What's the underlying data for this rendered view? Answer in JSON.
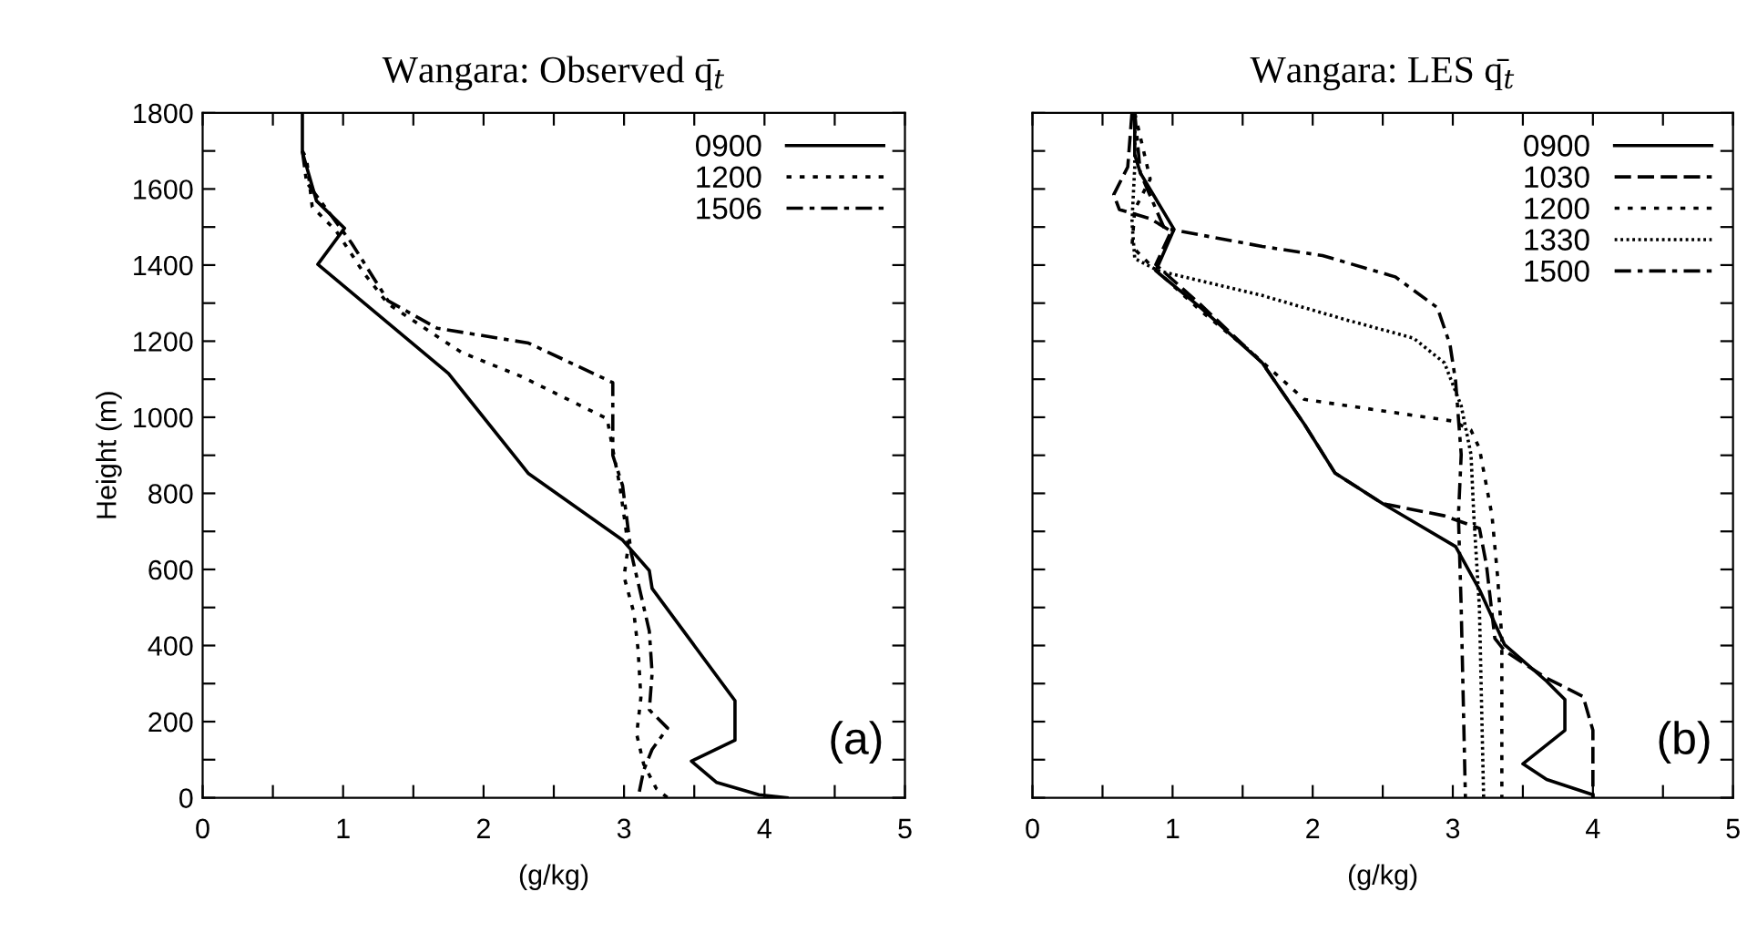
{
  "chart_data": [
    {
      "type": "line",
      "title": "Wangara: Observed q̄$_{t}$",
      "xlabel": "(g/kg)",
      "ylabel": "Height (m)",
      "annotations": [
        "(a)"
      ],
      "xlim": [
        0,
        5
      ],
      "ylim": [
        0,
        1800
      ],
      "xticks": [
        0,
        {
          "value": 0.5,
          "label": null
        },
        1,
        {
          "value": 1.5,
          "label": null
        },
        2,
        {
          "value": 2.5,
          "label": null
        },
        3,
        {
          "value": 3.5,
          "label": null
        },
        4,
        {
          "value": 4.5,
          "label": null
        },
        5
      ],
      "yticks": [
        0,
        {
          "value": 100,
          "label": null
        },
        200,
        {
          "value": 300,
          "label": null
        },
        400,
        {
          "value": 500,
          "label": null
        },
        600,
        {
          "value": 700,
          "label": null
        },
        800,
        {
          "value": 900,
          "label": null
        },
        1000,
        {
          "value": 1100,
          "label": null
        },
        1200,
        {
          "value": 1300,
          "label": null
        },
        1400,
        {
          "value": 1500,
          "label": null
        },
        1600,
        {
          "value": 1700,
          "label": null
        },
        1800
      ],
      "grid": false,
      "legend": "top right",
      "series": [
        {
          "name": "0900",
          "color": "#000000",
          "line_style": "solid",
          "x": [
            0.71,
            0.71,
            0.81,
            1.01,
            0.82,
            1.75,
            2.32,
            2.99,
            3.18,
            3.2,
            3.79,
            3.79,
            3.48,
            3.66,
            3.96,
            4.16
          ],
          "values": [
            1800,
            1697,
            1569,
            1497,
            1402,
            1115,
            852,
            677,
            597,
            550,
            255,
            151,
            96,
            40,
            8,
            0
          ]
        },
        {
          "name": "1200",
          "color": "#000000",
          "line_style": "dotted",
          "x": [
            0.71,
            0.74,
            0.78,
            0.95,
            1.15,
            1.32,
            1.84,
            2.27,
            2.88,
            2.92,
            2.97,
            3.0,
            3.03,
            3.0,
            3.07,
            3.1,
            3.12,
            3.09,
            3.14,
            3.23,
            3.31
          ],
          "values": [
            1700,
            1680,
            1553,
            1490,
            1378,
            1298,
            1171,
            1107,
            996,
            916,
            820,
            741,
            661,
            581,
            486,
            390,
            263,
            167,
            88,
            24,
            0
          ]
        },
        {
          "name": "1506",
          "color": "#000000",
          "line_style": "dashdot",
          "x": [
            0.71,
            0.74,
            0.87,
            1.06,
            1.32,
            1.67,
            2.32,
            2.92,
            2.92,
            2.99,
            3.05,
            3.12,
            3.18,
            3.2,
            3.18,
            3.31,
            3.2,
            3.14,
            3.1
          ],
          "values": [
            1700,
            1617,
            1553,
            1458,
            1306,
            1234,
            1195,
            1091,
            900,
            820,
            645,
            534,
            438,
            327,
            231,
            183,
            127,
            72,
            0
          ]
        }
      ]
    },
    {
      "type": "line",
      "title": "Wangara: LES q̄$_{t}$",
      "xlabel": "(g/kg)",
      "annotations": [
        "(b)"
      ],
      "tick_labels": "x",
      "xlim": [
        0,
        5
      ],
      "ylim": [
        0,
        1800
      ],
      "xticks": [
        0,
        {
          "value": 0.5,
          "label": null
        },
        1,
        {
          "value": 1.5,
          "label": null
        },
        2,
        {
          "value": 2.5,
          "label": null
        },
        3,
        {
          "value": 3.5,
          "label": null
        },
        4,
        {
          "value": 4.5,
          "label": null
        },
        5
      ],
      "yticks": [
        0,
        {
          "value": 100,
          "label": null
        },
        200,
        {
          "value": 300,
          "label": null
        },
        400,
        {
          "value": 500,
          "label": null
        },
        600,
        {
          "value": 700,
          "label": null
        },
        800,
        {
          "value": 900,
          "label": null
        },
        1000,
        {
          "value": 1100,
          "label": null
        },
        1200,
        {
          "value": 1300,
          "label": null
        },
        1400,
        {
          "value": 1500,
          "label": null
        },
        1600,
        {
          "value": 1700,
          "label": null
        },
        1800
      ],
      "grid": false,
      "legend": "top right",
      "series": [
        {
          "name": "0900",
          "color": "#000000",
          "line_style": "solid",
          "x": [
            0.73,
            0.73,
            0.77,
            1.01,
            0.88,
            1.2,
            1.64,
            1.94,
            2.16,
            2.5,
            3.02,
            3.19,
            3.37,
            3.67,
            3.8,
            3.8,
            3.5,
            3.67,
            4.0,
            4.0
          ],
          "values": [
            1800,
            1690,
            1642,
            1494,
            1385,
            1288,
            1143,
            982,
            853,
            773,
            660,
            547,
            402,
            306,
            258,
            177,
            89,
            48,
            8,
            0
          ]
        },
        {
          "name": "1030",
          "color": "#000000",
          "line_style": "dashed",
          "x": [
            0.71,
            0.68,
            0.58,
            0.62,
            0.84,
            0.99,
            0.88,
            1.2,
            1.64,
            1.94,
            2.16,
            2.5,
            2.94,
            3.19,
            3.24,
            3.3,
            3.37,
            3.67,
            3.93,
            4.0,
            4.0
          ],
          "values": [
            1800,
            1658,
            1585,
            1546,
            1522,
            1489,
            1401,
            1296,
            1143,
            982,
            853,
            773,
            741,
            708,
            612,
            419,
            386,
            314,
            266,
            177,
            0
          ]
        },
        {
          "name": "1200",
          "color": "#000000",
          "line_style": "dotted",
          "x": [
            0.73,
            0.84,
            0.73,
            0.71,
            0.84,
            1.2,
            1.55,
            1.94,
            2.55,
            3.0,
            3.13,
            3.19,
            3.28,
            3.32,
            3.35,
            3.35
          ],
          "values": [
            1800,
            1626,
            1546,
            1449,
            1401,
            1280,
            1175,
            1047,
            1014,
            990,
            966,
            918,
            741,
            580,
            419,
            0
          ]
        },
        {
          "name": "1330",
          "color": "#000000",
          "line_style": "densely dotted",
          "x": [
            0.73,
            0.73,
            0.71,
            0.73,
            0.9,
            1.64,
            2.24,
            2.72,
            2.94,
            3.06,
            3.13,
            3.15,
            3.19,
            3.22
          ],
          "values": [
            1800,
            1658,
            1513,
            1417,
            1385,
            1320,
            1256,
            1208,
            1143,
            1030,
            902,
            741,
            499,
            0
          ]
        },
        {
          "name": "1500",
          "color": "#000000",
          "line_style": "dashdot",
          "x": [
            0.73,
            0.77,
            0.94,
            1.64,
            2.07,
            2.59,
            2.89,
            2.98,
            3.02,
            3.04,
            3.06,
            3.04,
            3.06,
            3.09
          ],
          "values": [
            1800,
            1642,
            1497,
            1449,
            1425,
            1369,
            1288,
            1191,
            1095,
            998,
            902,
            741,
            499,
            0
          ]
        }
      ]
    }
  ]
}
